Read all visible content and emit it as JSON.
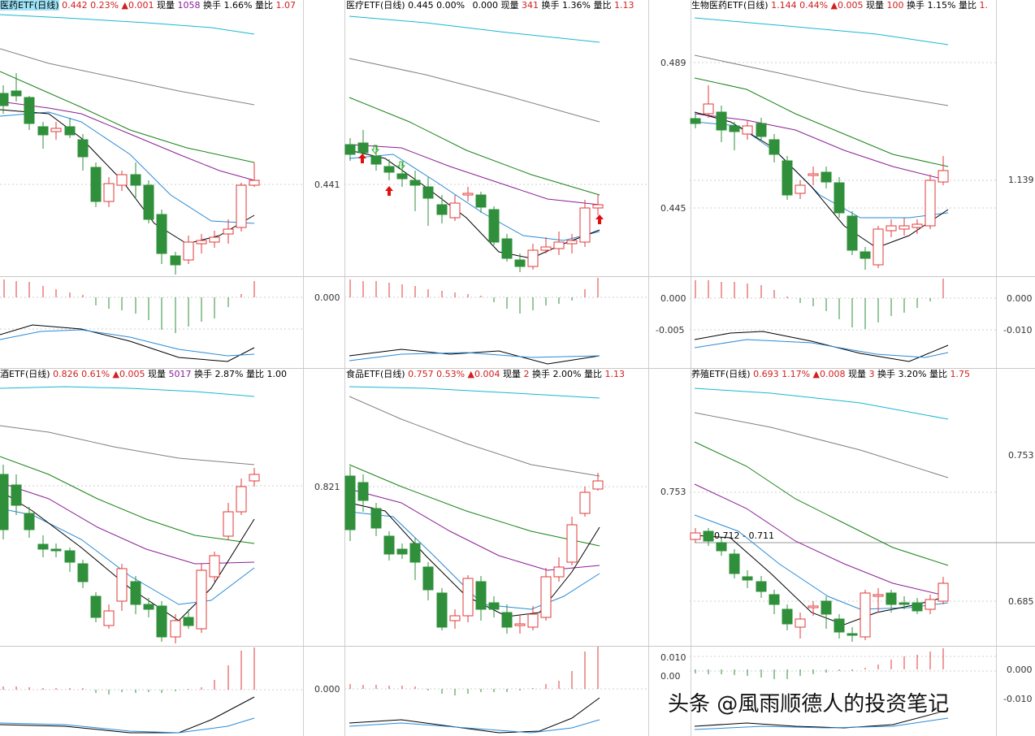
{
  "panels": [
    {
      "id": "p1",
      "name": "医药ETF(日线)",
      "highlight": true,
      "price": "0.442",
      "pct": "0.23%",
      "change": "▲0.001",
      "vol_label": "现量",
      "vol": "1058",
      "turn_label": "换手",
      "turn": "1.66%",
      "ratio_label": "量比",
      "ratio": "1.07",
      "right_axis": [],
      "macd_axis": []
    },
    {
      "id": "p2",
      "name": "医疗ETF(日线)",
      "highlight": false,
      "price": "0.445",
      "pct": "0.00%",
      "change": "0.000",
      "vol_label": "现量",
      "vol": "341",
      "turn_label": "换手",
      "turn": "1.36%",
      "ratio_label": "量比",
      "ratio": "1.13",
      "right_axis": [
        "0.441"
      ],
      "macd_axis": [
        "0.000"
      ]
    },
    {
      "id": "p3",
      "name": "生物医药ETF(日线)",
      "highlight": false,
      "price": "1.144",
      "pct": "0.44%",
      "change": "▲0.005",
      "vol_label": "现量",
      "vol": "100",
      "turn_label": "换手",
      "turn": "1.15%",
      "ratio_label": "量比",
      "ratio": "1.",
      "right_axis": [
        "0.489",
        "0.445"
      ],
      "macd_axis": [
        "0.000",
        "-0.005"
      ],
      "far_axis": [
        "1.139"
      ],
      "far_macd": [
        "0.000",
        "-0.010"
      ]
    },
    {
      "id": "p4",
      "name": "酒ETF(日线)",
      "highlight": false,
      "price": "0.826",
      "pct": "0.61%",
      "change": "▲0.005",
      "vol_label": "现量",
      "vol": "5017",
      "turn_label": "换手",
      "turn": "2.87%",
      "ratio_label": "量比",
      "ratio": "1.00",
      "right_axis": [],
      "macd_axis": []
    },
    {
      "id": "p5",
      "name": "食品ETF(日线)",
      "highlight": false,
      "price": "0.757",
      "pct": "0.53%",
      "change": "▲0.004",
      "vol_label": "现量",
      "vol": "2",
      "turn_label": "换手",
      "turn": "2.00%",
      "ratio_label": "量比",
      "ratio": "1.13",
      "right_axis": [
        "0.821"
      ],
      "macd_axis": [
        "0.000"
      ]
    },
    {
      "id": "p6",
      "name": "养殖ETF(日线)",
      "highlight": false,
      "price": "0.693",
      "pct": "1.17%",
      "change": "▲0.008",
      "vol_label": "现量",
      "vol": "3",
      "turn_label": "换手",
      "turn": "3.20%",
      "ratio_label": "量比",
      "ratio": "1.75",
      "right_axis": [
        "0.753"
      ],
      "macd_axis": [
        "0.010",
        "0.00"
      ],
      "far_axis": [
        "0.753",
        "0.685"
      ],
      "far_macd": [
        "0.000",
        "-0.010"
      ],
      "crosshair": "0.712 - 0.711"
    }
  ],
  "watermark": "头条 @風雨顺德人的投资笔记",
  "colors": {
    "up": "#e03a3a",
    "down": "#2f8f3a",
    "ma5": "#000000",
    "ma10": "#2a8ad6",
    "ma20": "#8b1f96",
    "ma30": "#178317",
    "ma60": "#808080",
    "ma120": "#19b7d1"
  }
}
